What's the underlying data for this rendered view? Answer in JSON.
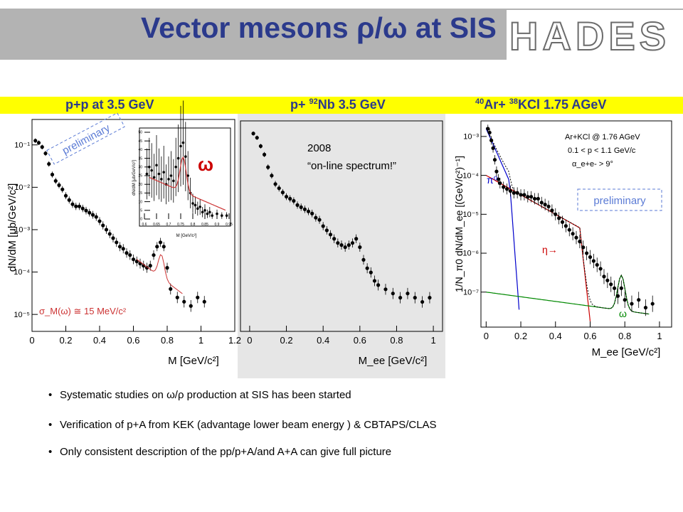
{
  "slide": {
    "title": "Vector mesons ρ/ω at SIS",
    "logo_text": "HADES"
  },
  "band": {
    "left": "p+p at 3.5 GeV",
    "middle_pre": "p+ ",
    "middle_sup": "92",
    "middle_post": "Nb  3.5 GeV",
    "right_sup1": "40",
    "right_mid": "Ar+ ",
    "right_sup2": "38",
    "right_post": "KCl  1.75 AGeV"
  },
  "chart_data": [
    {
      "type": "scatter",
      "panel": "p+p at 3.5 GeV",
      "ylabel": "dN/dM [μb/GeV/c²]",
      "xlabel": "M [GeV/c²]",
      "x_ticks": [
        "0",
        "0.2",
        "0.4",
        "0.6",
        "0.8",
        "1",
        "1.2"
      ],
      "y_ticks": [
        "10⁻⁵",
        "10⁻⁴",
        "10⁻³",
        "10⁻²",
        "10⁻¹"
      ],
      "xlim": [
        0,
        1.2
      ],
      "ylim_log10": [
        -5.4,
        -0.4
      ],
      "annotations": [
        "preliminary",
        "σ_M(ω) ≅ 15 MeV/c²"
      ],
      "points": [
        [
          0.02,
          -0.9
        ],
        [
          0.04,
          -0.95
        ],
        [
          0.06,
          -1.05
        ],
        [
          0.08,
          -1.2
        ],
        [
          0.1,
          -1.45
        ],
        [
          0.12,
          -1.7
        ],
        [
          0.14,
          -1.85
        ],
        [
          0.16,
          -1.95
        ],
        [
          0.18,
          -2.05
        ],
        [
          0.2,
          -2.2
        ],
        [
          0.22,
          -2.3
        ],
        [
          0.24,
          -2.4
        ],
        [
          0.26,
          -2.45
        ],
        [
          0.28,
          -2.45
        ],
        [
          0.3,
          -2.5
        ],
        [
          0.32,
          -2.55
        ],
        [
          0.34,
          -2.6
        ],
        [
          0.36,
          -2.65
        ],
        [
          0.38,
          -2.7
        ],
        [
          0.4,
          -2.8
        ],
        [
          0.42,
          -2.9
        ],
        [
          0.44,
          -3.0
        ],
        [
          0.46,
          -3.1
        ],
        [
          0.48,
          -3.2
        ],
        [
          0.5,
          -3.3
        ],
        [
          0.52,
          -3.4
        ],
        [
          0.54,
          -3.45
        ],
        [
          0.56,
          -3.55
        ],
        [
          0.58,
          -3.6
        ],
        [
          0.6,
          -3.7
        ],
        [
          0.62,
          -3.75
        ],
        [
          0.64,
          -3.8
        ],
        [
          0.66,
          -3.85
        ],
        [
          0.68,
          -3.9
        ],
        [
          0.7,
          -3.85
        ],
        [
          0.72,
          -3.6
        ],
        [
          0.74,
          -3.4
        ],
        [
          0.76,
          -3.3
        ],
        [
          0.78,
          -3.4
        ],
        [
          0.8,
          -3.9
        ],
        [
          0.82,
          -4.4
        ],
        [
          0.86,
          -4.6
        ],
        [
          0.9,
          -4.7
        ],
        [
          0.94,
          -4.8
        ],
        [
          0.98,
          -4.6
        ],
        [
          1.02,
          -4.7
        ]
      ],
      "inset": {
        "symbol": "ω",
        "xlabel": "M [GeV/c²]",
        "ylabel": "dN/dM [μb/GeV/c²]",
        "x_ticks": [
          "0.6",
          "0.65",
          "0.7",
          "0.75",
          "0.8",
          "0.85",
          "0.9",
          "0.95"
        ],
        "y_ticks": [
          "0",
          "5",
          "10",
          "15",
          "20",
          "25",
          "30",
          "35",
          "40",
          "45",
          "50"
        ],
        "xlim": [
          0.6,
          0.95
        ],
        "ylim": [
          0,
          50
        ],
        "points": [
          [
            0.61,
            26
          ],
          [
            0.62,
            30
          ],
          [
            0.63,
            28
          ],
          [
            0.64,
            24
          ],
          [
            0.65,
            31
          ],
          [
            0.66,
            26
          ],
          [
            0.67,
            23
          ],
          [
            0.68,
            27
          ],
          [
            0.69,
            20
          ],
          [
            0.7,
            23
          ],
          [
            0.71,
            25
          ],
          [
            0.72,
            22
          ],
          [
            0.73,
            30
          ],
          [
            0.74,
            35
          ],
          [
            0.75,
            42
          ],
          [
            0.76,
            44
          ],
          [
            0.77,
            36
          ],
          [
            0.78,
            25
          ],
          [
            0.79,
            15
          ],
          [
            0.8,
            9
          ],
          [
            0.81,
            8
          ],
          [
            0.82,
            6
          ],
          [
            0.83,
            7
          ],
          [
            0.84,
            4
          ],
          [
            0.85,
            5
          ],
          [
            0.86,
            3
          ],
          [
            0.87,
            4
          ],
          [
            0.88,
            2
          ],
          [
            0.9,
            3
          ],
          [
            0.92,
            2
          ],
          [
            0.94,
            2
          ]
        ]
      }
    },
    {
      "type": "scatter",
      "panel": "p+ 92Nb 3.5 GeV",
      "xlabel": "M_ee [GeV/c²]",
      "x_ticks": [
        "0",
        "0.2",
        "0.4",
        "0.6",
        "0.8",
        "1"
      ],
      "xlim": [
        -0.05,
        1.05
      ],
      "ylim_log10": [
        -5.4,
        -0.4
      ],
      "annotations": [
        "2008",
        "“on-line spectrum!”"
      ],
      "points": [
        [
          0.02,
          -0.7
        ],
        [
          0.04,
          -0.8
        ],
        [
          0.06,
          -1.0
        ],
        [
          0.08,
          -1.2
        ],
        [
          0.1,
          -1.5
        ],
        [
          0.12,
          -1.7
        ],
        [
          0.14,
          -1.9
        ],
        [
          0.16,
          -2.0
        ],
        [
          0.18,
          -2.1
        ],
        [
          0.2,
          -2.2
        ],
        [
          0.22,
          -2.25
        ],
        [
          0.24,
          -2.3
        ],
        [
          0.26,
          -2.4
        ],
        [
          0.28,
          -2.45
        ],
        [
          0.3,
          -2.5
        ],
        [
          0.32,
          -2.55
        ],
        [
          0.34,
          -2.6
        ],
        [
          0.36,
          -2.7
        ],
        [
          0.38,
          -2.75
        ],
        [
          0.4,
          -2.9
        ],
        [
          0.42,
          -3.0
        ],
        [
          0.44,
          -3.1
        ],
        [
          0.46,
          -3.2
        ],
        [
          0.48,
          -3.3
        ],
        [
          0.5,
          -3.35
        ],
        [
          0.52,
          -3.4
        ],
        [
          0.54,
          -3.35
        ],
        [
          0.56,
          -3.3
        ],
        [
          0.58,
          -3.2
        ],
        [
          0.6,
          -3.4
        ],
        [
          0.62,
          -3.7
        ],
        [
          0.64,
          -3.9
        ],
        [
          0.66,
          -4.0
        ],
        [
          0.68,
          -4.2
        ],
        [
          0.7,
          -4.3
        ],
        [
          0.74,
          -4.4
        ],
        [
          0.78,
          -4.5
        ],
        [
          0.82,
          -4.6
        ],
        [
          0.86,
          -4.5
        ],
        [
          0.9,
          -4.6
        ],
        [
          0.94,
          -4.7
        ],
        [
          0.98,
          -4.6
        ]
      ]
    },
    {
      "type": "scatter",
      "panel": "40Ar+ 38KCl 1.75 AGeV",
      "ylabel": "1/N_π0 dN/dM_ee [(GeV/c²)⁻¹]",
      "xlabel": "M_ee [GeV/c²]",
      "x_ticks": [
        "0",
        "0.2",
        "0.4",
        "0.6",
        "0.8",
        "1"
      ],
      "y_ticks": [
        "10⁻⁷",
        "10⁻⁶",
        "10⁻⁵",
        "10⁻⁴",
        "10⁻³"
      ],
      "xlim": [
        -0.03,
        1.07
      ],
      "ylim_log10": [
        -7.9,
        -2.6
      ],
      "legend_box": [
        "Ar+KCl @ 1.76 AGeV",
        "0.1 < p < 1.1 GeV/c",
        "α_e+e- > 9°"
      ],
      "labels": [
        "π⁰",
        "η→",
        "ω",
        "preliminary"
      ],
      "series": [
        {
          "name": "π⁰",
          "color": "#0000cc"
        },
        {
          "name": "η",
          "color": "#cc0000"
        },
        {
          "name": "ω",
          "color": "#008800"
        }
      ],
      "points": [
        [
          0.01,
          -2.8
        ],
        [
          0.02,
          -2.9
        ],
        [
          0.03,
          -3.1
        ],
        [
          0.04,
          -3.3
        ],
        [
          0.05,
          -3.6
        ],
        [
          0.06,
          -3.9
        ],
        [
          0.07,
          -4.1
        ],
        [
          0.08,
          -4.2
        ],
        [
          0.1,
          -4.3
        ],
        [
          0.12,
          -4.35
        ],
        [
          0.14,
          -4.4
        ],
        [
          0.16,
          -4.45
        ],
        [
          0.18,
          -4.45
        ],
        [
          0.2,
          -4.5
        ],
        [
          0.22,
          -4.5
        ],
        [
          0.24,
          -4.55
        ],
        [
          0.26,
          -4.55
        ],
        [
          0.28,
          -4.6
        ],
        [
          0.3,
          -4.6
        ],
        [
          0.32,
          -4.7
        ],
        [
          0.34,
          -4.75
        ],
        [
          0.36,
          -4.8
        ],
        [
          0.38,
          -4.9
        ],
        [
          0.4,
          -5.0
        ],
        [
          0.42,
          -5.1
        ],
        [
          0.44,
          -5.2
        ],
        [
          0.46,
          -5.3
        ],
        [
          0.48,
          -5.4
        ],
        [
          0.5,
          -5.5
        ],
        [
          0.52,
          -5.6
        ],
        [
          0.54,
          -5.7
        ],
        [
          0.56,
          -5.85
        ],
        [
          0.58,
          -6.0
        ],
        [
          0.6,
          -6.1
        ],
        [
          0.62,
          -6.2
        ],
        [
          0.64,
          -6.3
        ],
        [
          0.66,
          -6.4
        ],
        [
          0.68,
          -6.6
        ],
        [
          0.7,
          -6.7
        ],
        [
          0.72,
          -6.8
        ],
        [
          0.74,
          -6.9
        ],
        [
          0.76,
          -7.1
        ],
        [
          0.78,
          -6.9
        ],
        [
          0.8,
          -7.2
        ],
        [
          0.84,
          -7.3
        ],
        [
          0.88,
          -7.2
        ],
        [
          0.92,
          -7.4
        ],
        [
          0.96,
          -7.3
        ]
      ]
    }
  ],
  "bullets": [
    "Systematic studies on  ω/ρ  production at SIS has been started",
    "Verification of p+A from KEK (advantage lower beam energy ) & CBTAPS/CLAS",
    "Only consistent description of the pp/p+A/and A+A can give full picture"
  ]
}
